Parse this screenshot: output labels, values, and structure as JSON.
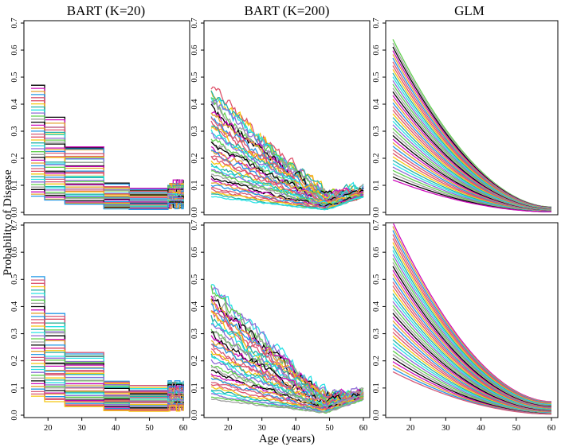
{
  "chart_data": {
    "type": "line",
    "layout": "2x3 grid",
    "column_titles": [
      "BART (K=20)",
      "BART (K=200)",
      "GLM"
    ],
    "xlabel": "Age (years)",
    "ylabel": "Probability of Disease",
    "xlim": [
      15,
      60
    ],
    "ylim": [
      0,
      0.7
    ],
    "x_ticks": [
      20,
      30,
      40,
      50,
      60
    ],
    "x_tick_labels": [
      "20",
      "30",
      "40",
      "50",
      "60"
    ],
    "y_ticks": [
      0,
      0.1,
      0.2,
      0.3,
      0.4,
      0.5,
      0.6,
      0.7
    ],
    "y_tick_labels": [
      "0.0",
      "0.1",
      "0.2",
      "0.3",
      "0.4",
      "0.5",
      "0.6",
      "0.7"
    ],
    "colors": [
      "#000000",
      "#df536b",
      "#61d04f",
      "#2297e6",
      "#28e2e5",
      "#cd0bbc",
      "#f5c710",
      "#9e9e9e",
      "#d65a78",
      "#8f6bd6",
      "#e4a230",
      "#20b2aa"
    ],
    "series_per_panel": 40,
    "panels": [
      {
        "row": 1,
        "col": 1,
        "model": "BART (K=20)",
        "kind": "step",
        "breakpoints": [
          19,
          25,
          36.5,
          44,
          55.5
        ],
        "segment_multipliers": [
          1.0,
          0.74,
          0.52,
          0.22,
          0.18,
          0.2
        ],
        "start_max": 0.47,
        "start_min": 0.06
      },
      {
        "row": 1,
        "col": 2,
        "model": "BART (K=200)",
        "kind": "noisy",
        "start_max": 0.47,
        "start_min": 0.06,
        "dip_age": 49,
        "end_rise": 0.05
      },
      {
        "row": 1,
        "col": 3,
        "model": "GLM",
        "kind": "smooth",
        "start_max": 0.64,
        "start_min": 0.12,
        "end_values_range": [
          0.002,
          0.02
        ]
      },
      {
        "row": 2,
        "col": 1,
        "model": "BART (K=20)",
        "kind": "step",
        "breakpoints": [
          19,
          25,
          36.5,
          44,
          55.5
        ],
        "segment_multipliers": [
          1.0,
          0.72,
          0.46,
          0.24,
          0.2,
          0.22
        ],
        "start_max": 0.51,
        "start_min": 0.07
      },
      {
        "row": 2,
        "col": 2,
        "model": "BART (K=200)",
        "kind": "noisy",
        "start_max": 0.49,
        "start_min": 0.06,
        "dip_age": 49,
        "end_rise": 0.05
      },
      {
        "row": 2,
        "col": 3,
        "model": "GLM",
        "kind": "smooth",
        "start_max": 0.71,
        "start_min": 0.16,
        "end_values_range": [
          0.004,
          0.05
        ]
      }
    ]
  }
}
